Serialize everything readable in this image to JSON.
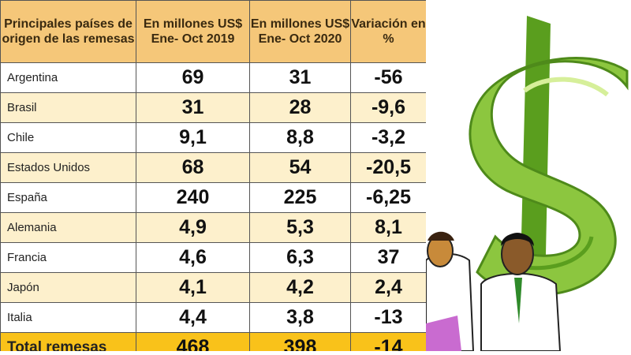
{
  "chart_data": {
    "type": "table",
    "columns": [
      "Principales países de origen de las remesas",
      "En millones US$ Ene- Oct 2019",
      "En millones US$ Ene- Oct 2020",
      "Variación en %"
    ],
    "rows": [
      {
        "country": "Argentina",
        "v2019": "69",
        "v2020": "31",
        "var": "-56"
      },
      {
        "country": "Brasil",
        "v2019": "31",
        "v2020": "28",
        "var": "-9,6"
      },
      {
        "country": "Chile",
        "v2019": "9,1",
        "v2020": "8,8",
        "var": "-3,2"
      },
      {
        "country": "Estados Unidos",
        "v2019": "68",
        "v2020": "54",
        "var": "-20,5"
      },
      {
        "country": "España",
        "v2019": "240",
        "v2020": "225",
        "var": "-6,25"
      },
      {
        "country": "Alemania",
        "v2019": "4,9",
        "v2020": "5,3",
        "var": "8,1"
      },
      {
        "country": "Francia",
        "v2019": "4,6",
        "v2020": "6,3",
        "var": "37"
      },
      {
        "country": "Japón",
        "v2019": "4,1",
        "v2020": "4,2",
        "var": "2,4"
      },
      {
        "country": "Italia",
        "v2019": "4,4",
        "v2020": "3,8",
        "var": "-13"
      }
    ],
    "total": {
      "country": "Total remesas",
      "v2019": "468",
      "v2020": "398",
      "var": "-14"
    }
  },
  "colors": {
    "header_bg": "#f5c779",
    "row_alt_bg": "#fdf0cc",
    "total_bg": "#f9c21a",
    "dollar_green": "#8cc63f"
  },
  "illustration": {
    "icons": [
      "dollar-sign-icon",
      "person-left-icon",
      "person-right-icon"
    ]
  }
}
